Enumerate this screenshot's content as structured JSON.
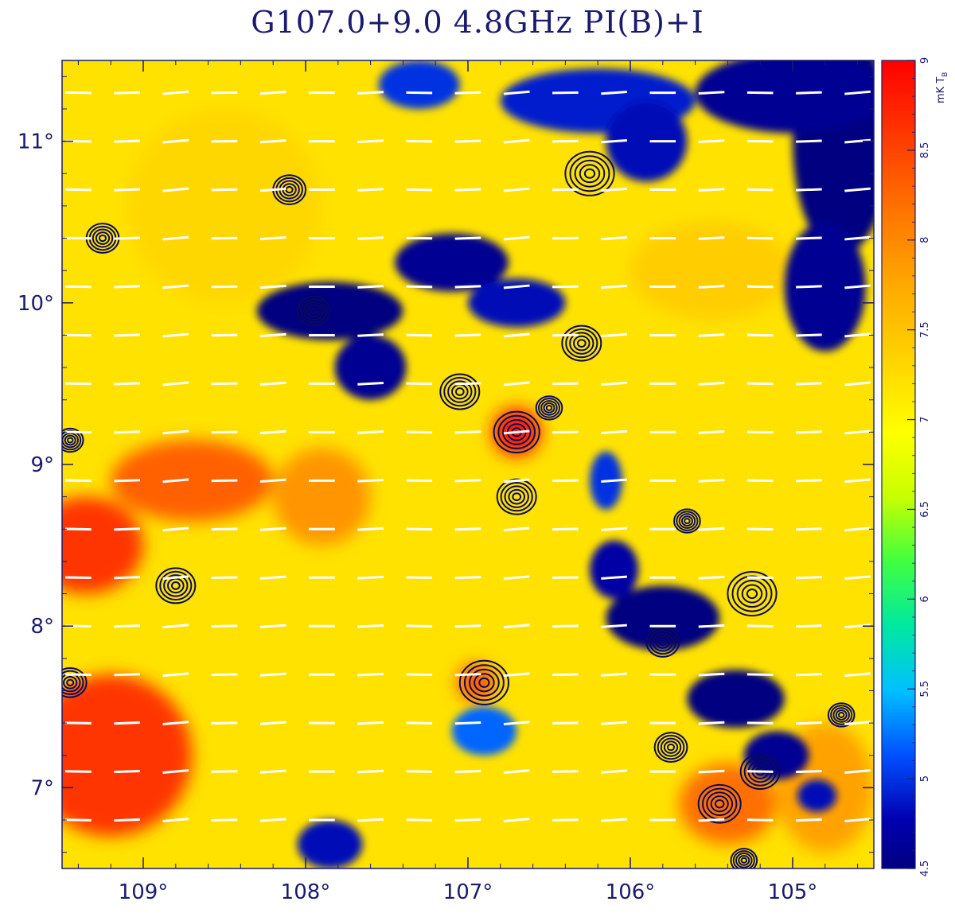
{
  "chart_data": {
    "type": "heatmap",
    "title": "G107.0+9.0 4.8GHz PI(B)+I",
    "xlabel": "",
    "ylabel": "",
    "xlim": [
      109.5,
      104.5
    ],
    "ylim": [
      6.5,
      11.5
    ],
    "x_ticks": [
      {
        "value": 109,
        "label": "109°"
      },
      {
        "value": 108,
        "label": "108°"
      },
      {
        "value": 107,
        "label": "107°"
      },
      {
        "value": 106,
        "label": "106°"
      },
      {
        "value": 105,
        "label": "105°"
      }
    ],
    "y_ticks": [
      {
        "value": 11,
        "label": "11°"
      },
      {
        "value": 10,
        "label": "10°"
      },
      {
        "value": 9,
        "label": "9°"
      },
      {
        "value": 8,
        "label": "8°"
      },
      {
        "value": 7,
        "label": "7°"
      }
    ],
    "colorbar": {
      "range": [
        4.5,
        9
      ],
      "unit": "mK T",
      "unit_subscript": "B",
      "ticks": [
        {
          "value": 9,
          "label": "9"
        },
        {
          "value": 8.5,
          "label": "8.5"
        },
        {
          "value": 8,
          "label": "8"
        },
        {
          "value": 7.5,
          "label": "7.5"
        },
        {
          "value": 7,
          "label": "7"
        },
        {
          "value": 6.5,
          "label": "6.5"
        },
        {
          "value": 6,
          "label": "6"
        },
        {
          "value": 5.5,
          "label": "5.5"
        },
        {
          "value": 5,
          "label": "5"
        },
        {
          "value": 4.5,
          "label": "4.5"
        }
      ]
    },
    "background_level": 7.2,
    "emission_regions": [
      {
        "l": 109.35,
        "b": 8.5,
        "rl": 0.35,
        "rb": 0.3,
        "value": 8.6
      },
      {
        "l": 109.2,
        "b": 7.2,
        "rl": 0.5,
        "rb": 0.5,
        "value": 8.6
      },
      {
        "l": 108.7,
        "b": 8.9,
        "rl": 0.5,
        "rb": 0.25,
        "value": 8.3
      },
      {
        "l": 107.9,
        "b": 8.8,
        "rl": 0.3,
        "rb": 0.3,
        "value": 7.9
      },
      {
        "l": 106.7,
        "b": 9.2,
        "rl": 0.15,
        "rb": 0.15,
        "value": 8.8
      },
      {
        "l": 106.95,
        "b": 7.65,
        "rl": 0.12,
        "rb": 0.12,
        "value": 8.3
      },
      {
        "l": 105.4,
        "b": 6.9,
        "rl": 0.3,
        "rb": 0.25,
        "value": 8.2
      },
      {
        "l": 104.8,
        "b": 7.0,
        "rl": 0.3,
        "rb": 0.4,
        "value": 7.8
      },
      {
        "l": 105.5,
        "b": 10.2,
        "rl": 0.5,
        "rb": 0.3,
        "value": 7.4
      },
      {
        "l": 108.5,
        "b": 10.6,
        "rl": 0.6,
        "rb": 0.6,
        "value": 7.3
      }
    ],
    "depolarization_regions": [
      {
        "l": 104.7,
        "b": 11.0,
        "rl": 0.3,
        "rb": 0.7,
        "value": 4.5
      },
      {
        "l": 105.0,
        "b": 11.3,
        "rl": 0.6,
        "rb": 0.25,
        "value": 4.6
      },
      {
        "l": 104.8,
        "b": 10.1,
        "rl": 0.25,
        "rb": 0.4,
        "value": 4.6
      },
      {
        "l": 107.85,
        "b": 9.95,
        "rl": 0.45,
        "rb": 0.18,
        "value": 4.5
      },
      {
        "l": 107.6,
        "b": 9.6,
        "rl": 0.22,
        "rb": 0.2,
        "value": 4.6
      },
      {
        "l": 107.1,
        "b": 10.25,
        "rl": 0.35,
        "rb": 0.18,
        "value": 4.6
      },
      {
        "l": 106.7,
        "b": 10.0,
        "rl": 0.3,
        "rb": 0.15,
        "value": 4.8
      },
      {
        "l": 106.2,
        "b": 11.25,
        "rl": 0.6,
        "rb": 0.2,
        "value": 4.9
      },
      {
        "l": 105.9,
        "b": 11.0,
        "rl": 0.25,
        "rb": 0.25,
        "value": 4.8
      },
      {
        "l": 107.3,
        "b": 11.35,
        "rl": 0.25,
        "rb": 0.15,
        "value": 5.0
      },
      {
        "l": 105.8,
        "b": 8.05,
        "rl": 0.35,
        "rb": 0.2,
        "value": 4.5
      },
      {
        "l": 105.35,
        "b": 7.55,
        "rl": 0.3,
        "rb": 0.18,
        "value": 4.5
      },
      {
        "l": 105.1,
        "b": 7.2,
        "rl": 0.2,
        "rb": 0.15,
        "value": 4.6
      },
      {
        "l": 106.1,
        "b": 8.35,
        "rl": 0.15,
        "rb": 0.18,
        "value": 4.7
      },
      {
        "l": 106.15,
        "b": 8.9,
        "rl": 0.1,
        "rb": 0.18,
        "value": 5.0
      },
      {
        "l": 104.85,
        "b": 6.95,
        "rl": 0.12,
        "rb": 0.1,
        "value": 4.8
      },
      {
        "l": 107.85,
        "b": 6.65,
        "rl": 0.2,
        "rb": 0.15,
        "value": 4.8
      },
      {
        "l": 106.9,
        "b": 7.35,
        "rl": 0.2,
        "rb": 0.15,
        "value": 5.2
      }
    ],
    "contour_sources": [
      {
        "l": 109.25,
        "b": 10.4,
        "r": 0.1
      },
      {
        "l": 107.95,
        "b": 9.95,
        "r": 0.1
      },
      {
        "l": 107.05,
        "b": 9.45,
        "r": 0.12
      },
      {
        "l": 106.7,
        "b": 9.2,
        "r": 0.14
      },
      {
        "l": 106.7,
        "b": 8.8,
        "r": 0.12
      },
      {
        "l": 106.3,
        "b": 9.75,
        "r": 0.12
      },
      {
        "l": 106.25,
        "b": 10.8,
        "r": 0.15
      },
      {
        "l": 106.9,
        "b": 7.65,
        "r": 0.15
      },
      {
        "l": 108.8,
        "b": 8.25,
        "r": 0.12
      },
      {
        "l": 105.25,
        "b": 8.2,
        "r": 0.15
      },
      {
        "l": 105.65,
        "b": 8.65,
        "r": 0.08
      },
      {
        "l": 105.45,
        "b": 6.9,
        "r": 0.13
      },
      {
        "l": 105.2,
        "b": 7.1,
        "r": 0.12
      },
      {
        "l": 104.7,
        "b": 7.45,
        "r": 0.08
      },
      {
        "l": 105.8,
        "b": 7.9,
        "r": 0.1
      },
      {
        "l": 105.3,
        "b": 6.55,
        "r": 0.08
      },
      {
        "l": 109.45,
        "b": 9.15,
        "r": 0.08
      },
      {
        "l": 109.45,
        "b": 7.65,
        "r": 0.1
      },
      {
        "l": 108.1,
        "b": 10.7,
        "r": 0.1
      },
      {
        "l": 106.5,
        "b": 9.35,
        "r": 0.08
      },
      {
        "l": 105.75,
        "b": 7.25,
        "r": 0.1
      }
    ],
    "b_vectors": {
      "b_rows": [
        11.3,
        11.0,
        10.7,
        10.4,
        10.1,
        9.8,
        9.5,
        9.2,
        8.9,
        8.6,
        8.3,
        8.0,
        7.7,
        7.4,
        7.1,
        6.8
      ],
      "l_cols": [
        109.4,
        109.1,
        108.8,
        108.5,
        108.2,
        107.9,
        107.6,
        107.3,
        107.0,
        106.7,
        106.4,
        106.1,
        105.8,
        105.5,
        105.2,
        104.9,
        104.6
      ],
      "length_deg": 0.16,
      "base_angle_deg": 2,
      "color": "#ffffff"
    },
    "colors": {
      "axis": "#1a1a6e",
      "contour": "#0a0a5a",
      "title": "#1a1a6e"
    }
  }
}
